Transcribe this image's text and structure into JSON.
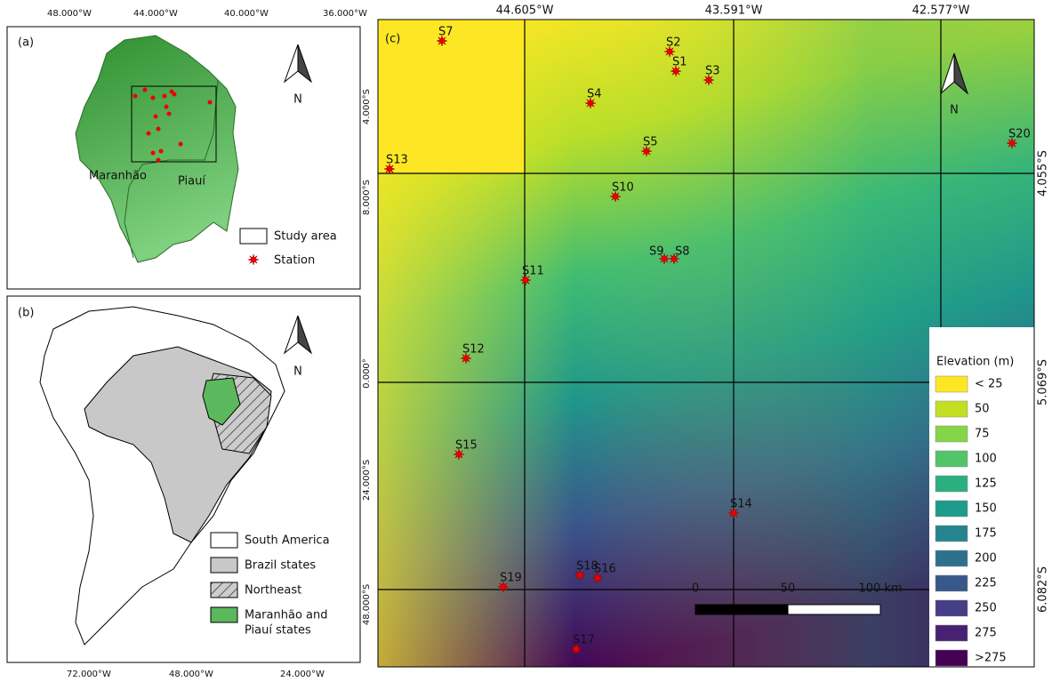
{
  "panel_a": {
    "label": "(a)",
    "top_ticks": [
      "48.000°W",
      "44.000°W",
      "40.000°W",
      "36.000°W"
    ],
    "side_ticks": [
      "4.000°S",
      "8.000°S"
    ],
    "north": "N",
    "regions": [
      "Maranhão",
      "Piauí"
    ],
    "legend": [
      "Study area",
      "Station"
    ]
  },
  "panel_b": {
    "label": "(b)",
    "side_ticks": [
      "0.000°",
      "24.000°S",
      "48.000°S"
    ],
    "bottom_ticks": [
      "72.000°W",
      "48.000°W",
      "24.000°W"
    ],
    "north": "N",
    "legend": [
      [
        "South America"
      ],
      [
        "Brazil states"
      ],
      [
        "Northeast"
      ],
      [
        "Maranhão and",
        "Piauí states"
      ]
    ]
  },
  "panel_c": {
    "label": "(c)",
    "top_ticks": [
      "44.605°W",
      "43.591°W",
      "42.577°W"
    ],
    "side_ticks": [
      "4.055°S",
      "5.069°S",
      "6.082°S"
    ],
    "north": "N",
    "stations": [
      "S1",
      "S2",
      "S3",
      "S4",
      "S5",
      "S7",
      "S8",
      "S9",
      "S10",
      "S11",
      "S12",
      "S13",
      "S14",
      "S15",
      "S16",
      "S17",
      "S18",
      "S19",
      "S20"
    ],
    "scale_labels": [
      "0",
      "50",
      "100 km"
    ],
    "legend_title": "Elevation (m)",
    "legend": [
      {
        "label": "< 25",
        "color": "#fde725"
      },
      {
        "label": "50",
        "color": "#c2df23"
      },
      {
        "label": "75",
        "color": "#86d549"
      },
      {
        "label": "100",
        "color": "#52c569"
      },
      {
        "label": "125",
        "color": "#2ab07f"
      },
      {
        "label": "150",
        "color": "#1e9b8a"
      },
      {
        "label": "175",
        "color": "#25858e"
      },
      {
        "label": "200",
        "color": "#2d708e"
      },
      {
        "label": "225",
        "color": "#38588c"
      },
      {
        "label": "250",
        "color": "#433e85"
      },
      {
        "label": "275",
        "color": "#482173"
      },
      {
        "label": ">275",
        "color": "#440154"
      }
    ]
  }
}
